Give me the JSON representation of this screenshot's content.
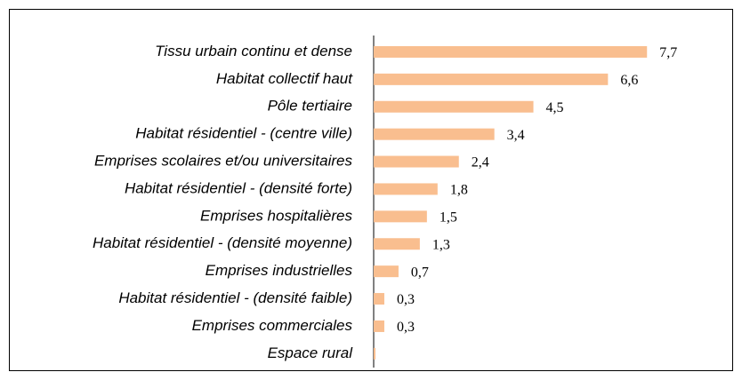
{
  "chart_data": {
    "type": "bar",
    "orientation": "horizontal",
    "categories": [
      "Tissu urbain continu et dense",
      "Habitat collectif haut",
      "Pôle tertiaire",
      "Habitat résidentiel - (centre ville)",
      "Emprises scolaires et/ou universitaires",
      "Habitat résidentiel - (densité forte)",
      "Emprises hospitalières",
      "Habitat résidentiel - (densité moyenne)",
      "Emprises industrielles",
      "Habitat résidentiel - (densité faible)",
      "Emprises commerciales",
      "Espace rural"
    ],
    "values": [
      7.7,
      6.6,
      4.5,
      3.4,
      2.4,
      1.8,
      1.5,
      1.3,
      0.7,
      0.3,
      0.3,
      0.05
    ],
    "value_labels": [
      "7,7",
      "6,6",
      "4,5",
      "3,4",
      "2,4",
      "1,8",
      "1,5",
      "1,3",
      "0,7",
      "0,3",
      "0,3",
      null
    ],
    "color": "#f9be8f",
    "xlim": [
      0,
      10
    ]
  }
}
